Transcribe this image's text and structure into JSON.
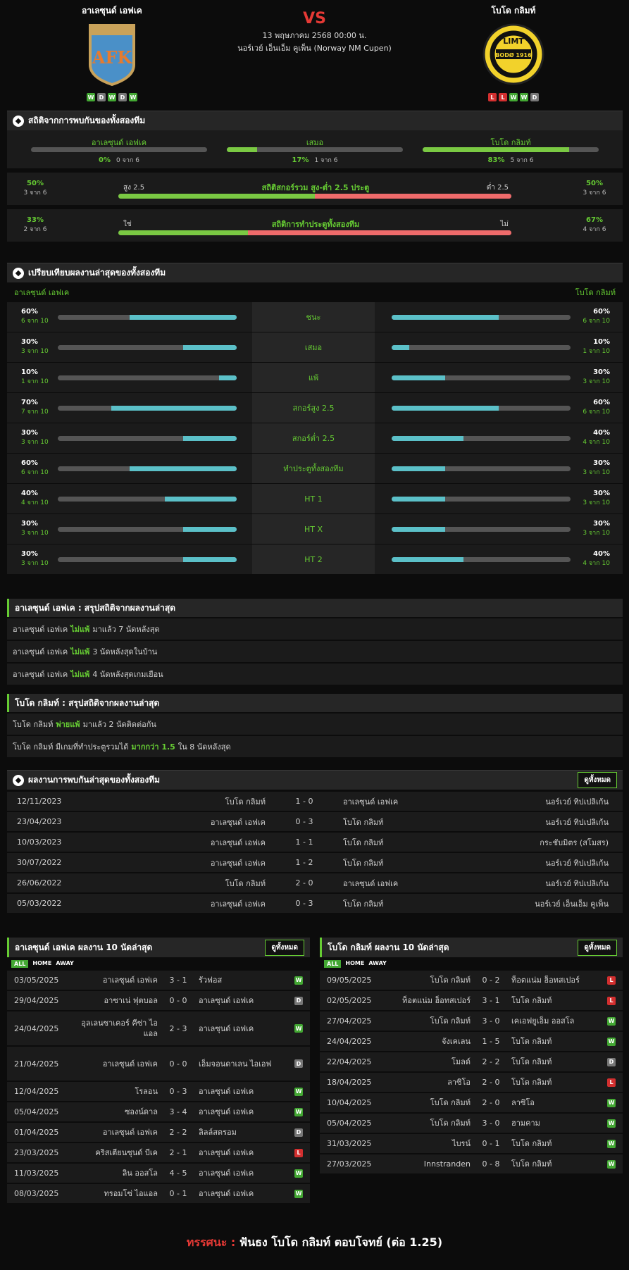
{
  "header": {
    "home_name": "อาเลซุนด์ เอฟเค",
    "away_name": "โบโด กลิมท์",
    "vs": "VS",
    "date": "13 พฤษภาคม 2568 00:00 น.",
    "competition": "นอร์เวย์ เอ็นเอ็ม คูเพ็น (Norway NM Cupen)",
    "home_logo_text": "AFK",
    "away_logo_text_top": "LIMT",
    "away_logo_text_bottom": "BODØ 1916",
    "home_form": [
      "W",
      "D",
      "W",
      "D",
      "W"
    ],
    "away_form": [
      "L",
      "L",
      "W",
      "W",
      "D"
    ]
  },
  "h2h_stats": {
    "title": "สถิติจากการพบกันของทั้งสองทีม",
    "items": [
      {
        "label": "อาเลซุนด์ เอฟเค",
        "pct": "0%",
        "count": "0 จาก 6",
        "fill": 0
      },
      {
        "label": "เสมอ",
        "pct": "17%",
        "count": "1 จาก 6",
        "fill": 0.17
      },
      {
        "label": "โบโด กลิมท์",
        "pct": "83%",
        "count": "5 จาก 6",
        "fill": 0.83
      }
    ],
    "ou": {
      "left_pct": "50%",
      "left_count": "3 จาก 6",
      "left_label": "สูง 2.5",
      "title": "สถิติสกอร์รวม สูง-ต่ำ 2.5 ประตู",
      "right_label": "ต่ำ 2.5",
      "right_pct": "50%",
      "right_count": "3 จาก 6",
      "split": 0.5
    },
    "btts": {
      "left_pct": "33%",
      "left_count": "2 จาก 6",
      "left_label": "ใช่",
      "title": "สถิติการทำประตูทั้งสองทีม",
      "right_label": "ไม่",
      "right_pct": "67%",
      "right_count": "4 จาก 6",
      "split": 0.33
    }
  },
  "compare": {
    "title": "เปรียบเทียบผลงานล่าสุดของทั้งสองทีม",
    "home_label": "อาเลซุนด์ เอฟเค",
    "away_label": "โบโด กลิมท์",
    "rows": [
      {
        "label": "ชนะ",
        "h_pct": "60%",
        "h_cnt": "6 จาก 10",
        "h": 0.6,
        "a_pct": "60%",
        "a_cnt": "6 จาก 10",
        "a": 0.6
      },
      {
        "label": "เสมอ",
        "h_pct": "30%",
        "h_cnt": "3 จาก 10",
        "h": 0.3,
        "a_pct": "10%",
        "a_cnt": "1 จาก 10",
        "a": 0.1
      },
      {
        "label": "แพ้",
        "h_pct": "10%",
        "h_cnt": "1 จาก 10",
        "h": 0.1,
        "a_pct": "30%",
        "a_cnt": "3 จาก 10",
        "a": 0.3
      },
      {
        "label": "สกอร์สูง 2.5",
        "h_pct": "70%",
        "h_cnt": "7 จาก 10",
        "h": 0.7,
        "a_pct": "60%",
        "a_cnt": "6 จาก 10",
        "a": 0.6
      },
      {
        "label": "สกอร์ต่ำ 2.5",
        "h_pct": "30%",
        "h_cnt": "3 จาก 10",
        "h": 0.3,
        "a_pct": "40%",
        "a_cnt": "4 จาก 10",
        "a": 0.4
      },
      {
        "label": "ทำประตูทั้งสองทีม",
        "h_pct": "60%",
        "h_cnt": "6 จาก 10",
        "h": 0.6,
        "a_pct": "30%",
        "a_cnt": "3 จาก 10",
        "a": 0.3
      },
      {
        "label": "HT 1",
        "h_pct": "40%",
        "h_cnt": "4 จาก 10",
        "h": 0.4,
        "a_pct": "30%",
        "a_cnt": "3 จาก 10",
        "a": 0.3
      },
      {
        "label": "HT X",
        "h_pct": "30%",
        "h_cnt": "3 จาก 10",
        "h": 0.3,
        "a_pct": "30%",
        "a_cnt": "3 จาก 10",
        "a": 0.3
      },
      {
        "label": "HT 2",
        "h_pct": "30%",
        "h_cnt": "3 จาก 10",
        "h": 0.3,
        "a_pct": "40%",
        "a_cnt": "4 จาก 10",
        "a": 0.4
      }
    ]
  },
  "summary_home": {
    "title": "อาเลซุนด์ เอฟเค : สรุปสถิติจากผลงานล่าสุด",
    "rows": [
      {
        "a": "อาเลซุนด์ เอฟเค",
        "b": "ไม่แพ้",
        "c": "มาแล้ว 7 นัดหลังสุด"
      },
      {
        "a": "อาเลซุนด์ เอฟเค",
        "b": "ไม่แพ้",
        "c": "3  นัดหลังสุดในบ้าน"
      },
      {
        "a": "อาเลซุนด์ เอฟเค",
        "b": "ไม่แพ้",
        "c": "4  นัดหลังสุดเกมเยือน"
      }
    ]
  },
  "summary_away": {
    "title": "โบโด กลิมท์ : สรุปสถิติจากผลงานล่าสุด",
    "row1": {
      "a": "โบโด กลิมท์",
      "b": "พ่ายแพ้",
      "c": "มาแล้ว 2 นัดติดต่อกัน"
    },
    "row2": {
      "a": "โบโด กลิมท์  มีเกมที่ทำประตูรวมได้",
      "b": "มากกว่า  1.5",
      "c": "ใน 8 นัดหลังสุด"
    }
  },
  "h2h_results": {
    "title": "ผลงานการพบกันล่าสุดของทั้งสองทีม",
    "see_all": "ดูทั้งหมด",
    "rows": [
      {
        "date": "12/11/2023",
        "home": "โบโด กลิมท์",
        "score": "1 - 0",
        "away": "อาเลซุนด์ เอฟเค",
        "comp": "นอร์เวย์ ทิปเปลิเก้น"
      },
      {
        "date": "23/04/2023",
        "home": "อาเลซุนด์ เอฟเค",
        "score": "0 - 3",
        "away": "โบโด กลิมท์",
        "comp": "นอร์เวย์ ทิปเปลิเก้น"
      },
      {
        "date": "10/03/2023",
        "home": "อาเลซุนด์ เอฟเค",
        "score": "1 - 1",
        "away": "โบโด กลิมท์",
        "comp": "กระชับมิตร (สโมสร)"
      },
      {
        "date": "30/07/2022",
        "home": "อาเลซุนด์ เอฟเค",
        "score": "1 - 2",
        "away": "โบโด กลิมท์",
        "comp": "นอร์เวย์ ทิปเปลิเก้น"
      },
      {
        "date": "26/06/2022",
        "home": "โบโด กลิมท์",
        "score": "2 - 0",
        "away": "อาเลซุนด์ เอฟเค",
        "comp": "นอร์เวย์ ทิปเปลิเก้น"
      },
      {
        "date": "05/03/2022",
        "home": "อาเลซุนด์ เอฟเค",
        "score": "0 - 3",
        "away": "โบโด กลิมท์",
        "comp": "นอร์เวย์ เอ็นเอ็ม คูเพ็น"
      }
    ]
  },
  "home_last10": {
    "title": "อาเลซุนด์ เอฟเค ผลงาน 10 นัดล่าสุด",
    "see_all": "ดูทั้งหมด",
    "filters": [
      "ALL",
      "HOME",
      "AWAY"
    ],
    "rows": [
      {
        "date": "03/05/2025",
        "home": "อาเลซุนด์ เอฟเค",
        "score": "3 - 1",
        "away": "รัวฟอส",
        "res": "W",
        "tall": false
      },
      {
        "date": "29/04/2025",
        "home": "อาซาเน่ ฟุตบอล",
        "score": "0 - 0",
        "away": "อาเลซุนด์ เอฟเค",
        "res": "D",
        "tall": false
      },
      {
        "date": "24/04/2025",
        "home": "อุลเลนซาเคอร์ คีซ่า ไอแอล",
        "score": "2 - 3",
        "away": "อาเลซุนด์ เอฟเค",
        "res": "W",
        "tall": true
      },
      {
        "date": "21/04/2025",
        "home": "อาเลซุนด์ เอฟเค",
        "score": "0 - 0",
        "away": "เอ็มจอนดาเลน ไอเอฟ",
        "res": "D",
        "tall": true
      },
      {
        "date": "12/04/2025",
        "home": "โรลอน",
        "score": "0 - 3",
        "away": "อาเลซุนด์ เอฟเค",
        "res": "W",
        "tall": false
      },
      {
        "date": "05/04/2025",
        "home": "ซองน์ดาล",
        "score": "3 - 4",
        "away": "อาเลซุนด์ เอฟเค",
        "res": "W",
        "tall": false
      },
      {
        "date": "01/04/2025",
        "home": "อาเลซุนด์ เอฟเค",
        "score": "2 - 2",
        "away": "ลิลล์สตรอม",
        "res": "D",
        "tall": false
      },
      {
        "date": "23/03/2025",
        "home": "คริสเตียนซุนด์ บีเค",
        "score": "2 - 1",
        "away": "อาเลซุนด์ เอฟเค",
        "res": "L",
        "tall": false
      },
      {
        "date": "11/03/2025",
        "home": "ลิน ออสโล",
        "score": "4 - 5",
        "away": "อาเลซุนด์ เอฟเค",
        "res": "W",
        "tall": false
      },
      {
        "date": "08/03/2025",
        "home": "ทรอมโซ่ ไอแอล",
        "score": "0 - 1",
        "away": "อาเลซุนด์ เอฟเค",
        "res": "W",
        "tall": false
      }
    ]
  },
  "away_last10": {
    "title": "โบโด กลิมท์ ผลงาน 10 นัดล่าสุด",
    "see_all": "ดูทั้งหมด",
    "filters": [
      "ALL",
      "HOME",
      "AWAY"
    ],
    "rows": [
      {
        "date": "09/05/2025",
        "home": "โบโด กลิมท์",
        "score": "0 - 2",
        "away": "ท็อตแน่ม ฮ็อทสเปอร์",
        "res": "L"
      },
      {
        "date": "02/05/2025",
        "home": "ท็อตแน่ม ฮ็อทสเปอร์",
        "score": "3 - 1",
        "away": "โบโด กลิมท์",
        "res": "L"
      },
      {
        "date": "27/04/2025",
        "home": "โบโด กลิมท์",
        "score": "3 - 0",
        "away": "เคเอฟยูเอ็ม ออสโล",
        "res": "W"
      },
      {
        "date": "24/04/2025",
        "home": "จังเคเลน",
        "score": "1 - 5",
        "away": "โบโด กลิมท์",
        "res": "W"
      },
      {
        "date": "22/04/2025",
        "home": "โมลด์",
        "score": "2 - 2",
        "away": "โบโด กลิมท์",
        "res": "D"
      },
      {
        "date": "18/04/2025",
        "home": "ลาซิโอ",
        "score": "2 - 0",
        "away": "โบโด กลิมท์",
        "res": "L"
      },
      {
        "date": "10/04/2025",
        "home": "โบโด กลิมท์",
        "score": "2 - 0",
        "away": "ลาซิโอ",
        "res": "W"
      },
      {
        "date": "05/04/2025",
        "home": "โบโด กลิมท์",
        "score": "3 - 0",
        "away": "ฮามคาม",
        "res": "W"
      },
      {
        "date": "31/03/2025",
        "home": "ไบรน์",
        "score": "0 - 1",
        "away": "โบโด กลิมท์",
        "res": "W"
      },
      {
        "date": "27/03/2025",
        "home": "Innstranden",
        "score": "0 - 8",
        "away": "โบโด กลิมท์",
        "res": "W"
      }
    ]
  },
  "verdict": {
    "label": "ทรรศนะ :",
    "text": "ฟันธง โบโด กลิมท์ ตอบโจทย์ (ต่อ 1.25)"
  },
  "colors": {
    "accent": "#66cc33",
    "bar_teal": "#5bc0c8",
    "bar_red": "#ef6b6b",
    "win": "#43a833",
    "loss": "#d32f2f"
  }
}
